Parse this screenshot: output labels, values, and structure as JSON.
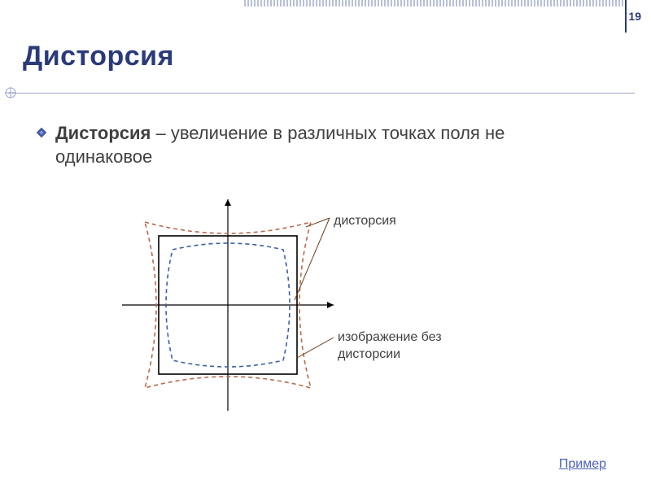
{
  "page_number": "19",
  "title": "Дисторсия",
  "body": {
    "term": "Дисторсия",
    "rest": " – увеличение в различных точках поля не одинаковое"
  },
  "labels": {
    "distortion": "дисторсия",
    "no_distortion": "изображение без дисторсии"
  },
  "link": "Пример",
  "colors": {
    "title": "#2a3a7a",
    "text": "#404040",
    "link": "#4a5fb8",
    "axis": "#000000",
    "square": "#000000",
    "pincushion": "#b86a4a",
    "barrel": "#3a5fa8",
    "callout": "#693a18",
    "top_pattern": "#b8c0d8",
    "rule": "#9aa4c8"
  },
  "diagram": {
    "type": "optical-distortion-diagram",
    "axis_extent": 130,
    "square_half": 85,
    "pincushion_corner": 102,
    "pincushion_mid": 74,
    "barrel_corner": 68,
    "barrel_mid": 84,
    "stroke_width_axis": 1.2,
    "stroke_width_square": 1.6,
    "stroke_width_dashed": 1.6,
    "dash": "5 4"
  }
}
